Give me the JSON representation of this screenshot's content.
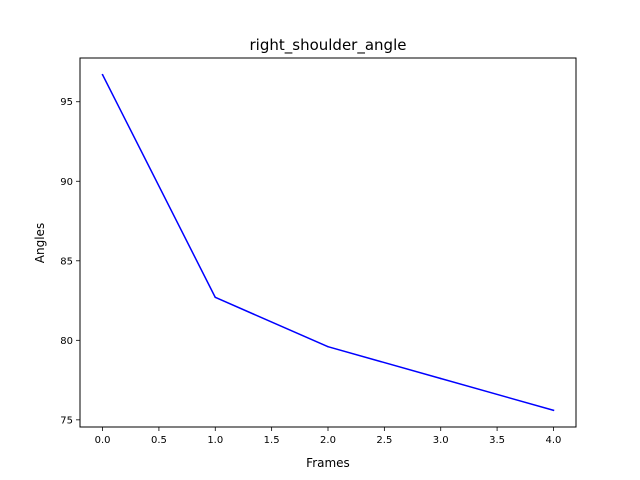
{
  "chart_data": {
    "type": "line",
    "title": "right_shoulder_angle",
    "xlabel": "Frames",
    "ylabel": "Angles",
    "x": [
      0,
      1,
      2,
      3,
      4
    ],
    "series": [
      {
        "values": [
          96.7,
          82.7,
          79.6,
          77.6,
          75.6
        ],
        "color": "#0000ff"
      }
    ],
    "xlim": [
      -0.2,
      4.2
    ],
    "ylim": [
      74.55,
      97.75
    ],
    "xticks": [
      0.0,
      0.5,
      1.0,
      1.5,
      2.0,
      2.5,
      3.0,
      3.5,
      4.0
    ],
    "xtick_labels": [
      "0.0",
      "0.5",
      "1.0",
      "1.5",
      "2.0",
      "2.5",
      "3.0",
      "3.5",
      "4.0"
    ],
    "yticks": [
      75,
      80,
      85,
      90,
      95
    ],
    "ytick_labels": [
      "75",
      "80",
      "85",
      "90",
      "95"
    ],
    "grid": false,
    "legend": false
  }
}
